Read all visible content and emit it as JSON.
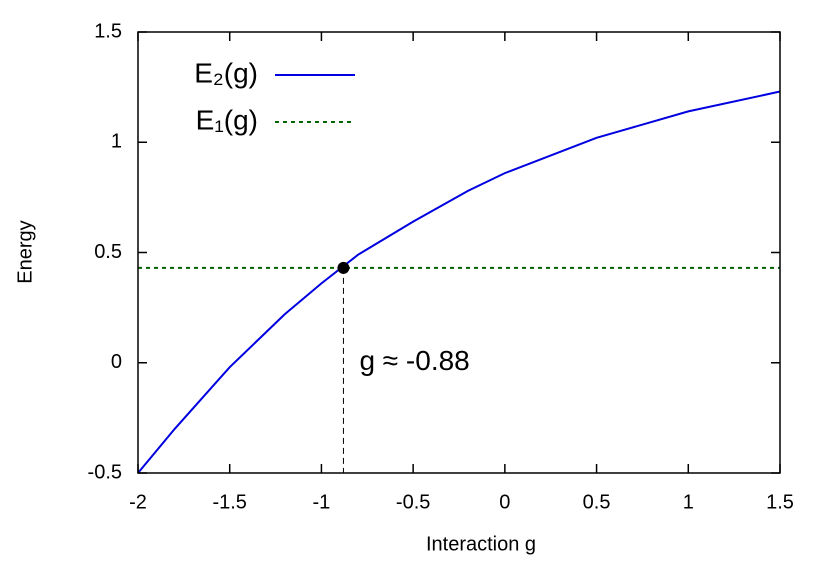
{
  "chart_data": {
    "type": "line",
    "xlabel": "Interaction g",
    "ylabel": "Energy",
    "xlim": [
      -2,
      1.5
    ],
    "xticks": [
      -2,
      -1.5,
      -1,
      -0.5,
      0,
      0.5,
      1,
      1.5
    ],
    "ylim": [
      -0.5,
      1.5
    ],
    "yticks": [
      -0.5,
      0,
      0.5,
      1,
      1.5
    ],
    "legend": "top-left",
    "series": [
      {
        "name": "E₂(g)",
        "color": "#0000e0",
        "style": "solid",
        "x": [
          -2,
          -1.8,
          -1.5,
          -1.2,
          -1,
          -0.8,
          -0.5,
          -0.2,
          0,
          0.5,
          1,
          1.5
        ],
        "values": [
          -0.5,
          -0.3,
          -0.02,
          0.22,
          0.36,
          0.49,
          0.64,
          0.78,
          0.86,
          1.02,
          1.14,
          1.23
        ]
      },
      {
        "name": "E₁(g)",
        "color": "#006400",
        "style": "dotted",
        "x": [
          -2,
          1.5
        ],
        "values": [
          0.43,
          0.43
        ]
      }
    ],
    "annotations": [
      {
        "text": "g ≈ -0.88",
        "x": -0.88,
        "y": 0.43
      }
    ]
  }
}
